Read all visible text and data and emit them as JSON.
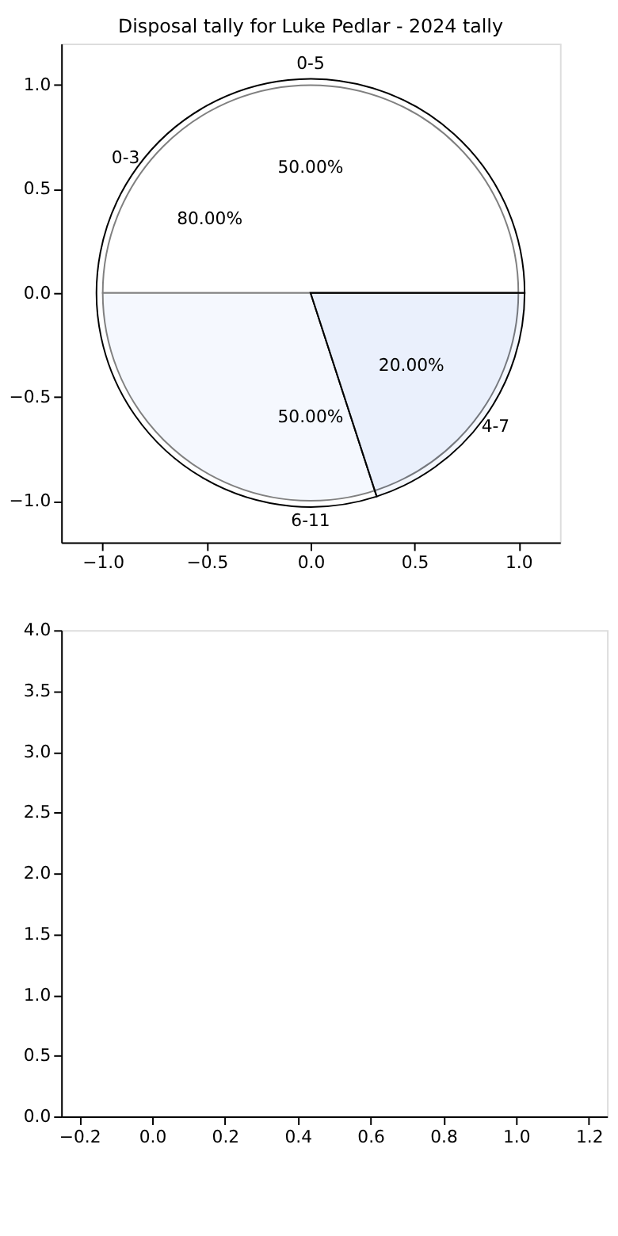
{
  "chart_data": [
    {
      "type": "scatter",
      "title": "Disposal tally for Luke Pedlar - 2024 tally",
      "xlim": [
        -1.2,
        1.2
      ],
      "ylim": [
        -1.2,
        1.2
      ],
      "xticks": [
        {
          "value": -1,
          "label": "−1.0"
        },
        {
          "value": -0.5,
          "label": "−0.5"
        },
        {
          "value": 0,
          "label": "0.0"
        },
        {
          "value": 0.5,
          "label": "0.5"
        },
        {
          "value": 1,
          "label": "1.0"
        }
      ],
      "yticks": [
        {
          "value": -1,
          "label": "−1.0"
        },
        {
          "value": -0.5,
          "label": "−0.5"
        },
        {
          "value": 0,
          "label": "0.0"
        },
        {
          "value": 0.5,
          "label": "0.5"
        },
        {
          "value": 1,
          "label": "1.0"
        }
      ],
      "grid": false
    },
    {
      "type": "pie",
      "categories": [
        "0-5",
        "6-11"
      ],
      "values": [
        50,
        50
      ],
      "colors": [
        "#ffffff",
        "#eaf0fc"
      ],
      "value_labels": [
        "50.00%",
        "50.00%"
      ],
      "legend": false
    },
    {
      "type": "pie",
      "categories": [
        "0-3",
        "4-7"
      ],
      "values": [
        80,
        20
      ],
      "colors": [
        "#ffffff",
        "#ffffff"
      ],
      "value_labels": [
        "80.00%",
        "20.00%"
      ],
      "legend": false
    },
    {
      "type": "scatter",
      "xlim": [
        -0.25,
        1.25
      ],
      "ylim": [
        0,
        4
      ],
      "xticks": [
        {
          "value": -0.2,
          "label": "−0.2"
        },
        {
          "value": 0,
          "label": "0.0"
        },
        {
          "value": 0.2,
          "label": "0.2"
        },
        {
          "value": 0.4,
          "label": "0.4"
        },
        {
          "value": 0.6,
          "label": "0.6"
        },
        {
          "value": 0.8,
          "label": "0.8"
        },
        {
          "value": 1,
          "label": "1.0"
        },
        {
          "value": 1.2,
          "label": "1.2"
        }
      ],
      "yticks": [
        {
          "value": 0,
          "label": "0.0"
        },
        {
          "value": 0.5,
          "label": "0.5"
        },
        {
          "value": 1,
          "label": "1.0"
        },
        {
          "value": 1.5,
          "label": "1.5"
        },
        {
          "value": 2,
          "label": "2.0"
        },
        {
          "value": 2.5,
          "label": "2.5"
        },
        {
          "value": 3,
          "label": "3.0"
        },
        {
          "value": 3.5,
          "label": "3.5"
        },
        {
          "value": 4,
          "label": "4.0"
        }
      ],
      "grid": false
    }
  ]
}
